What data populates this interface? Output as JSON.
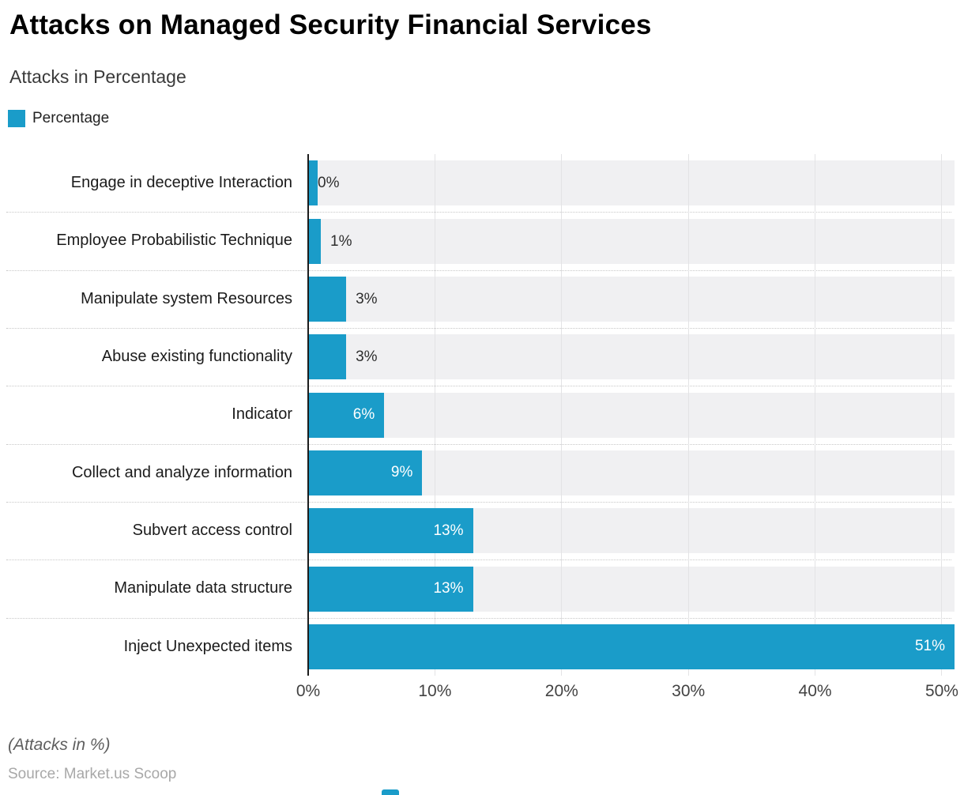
{
  "title": "Attacks on Managed Security Financial Services",
  "subtitle": "Attacks in Percentage",
  "legend": {
    "label": "Percentage",
    "color": "#1A9CC9"
  },
  "chart_data": {
    "type": "bar",
    "orientation": "horizontal",
    "title": "Attacks on Managed Security Financial Services",
    "subtitle": "Attacks in Percentage",
    "series_name": "Percentage",
    "categories": [
      "Engage in deceptive Interaction",
      "Employee Probabilistic Technique",
      "Manipulate system Resources",
      "Abuse existing functionality",
      "Indicator",
      "Collect and analyze information",
      "Subvert access control",
      "Manipulate data structure",
      "Inject Unexpected items"
    ],
    "values": [
      0,
      1,
      3,
      3,
      6,
      9,
      13,
      13,
      51
    ],
    "value_labels": [
      "0%",
      "1%",
      "3%",
      "3%",
      "6%",
      "9%",
      "13%",
      "13%",
      "51%"
    ],
    "xlim": [
      0,
      51
    ],
    "tick_values": [
      0,
      10,
      20,
      30,
      40,
      50
    ],
    "tick_labels": [
      "0%",
      "10%",
      "20%",
      "30%",
      "40%",
      "50%"
    ],
    "grid": true,
    "legend_position": "top-left",
    "bar_color": "#1A9CC9",
    "band_color": "#F0F0F2",
    "gridline_color": "#E3E3E5",
    "separator_color": "#C8C8C8"
  },
  "footer": {
    "note": "(Attacks in %)",
    "source": "Source: Market.us Scoop"
  }
}
